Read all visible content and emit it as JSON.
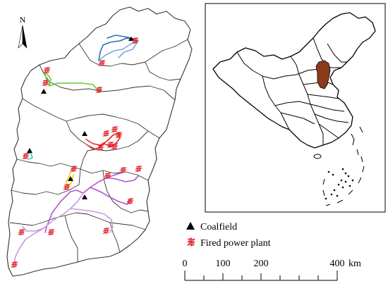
{
  "north_arrow": {
    "label": "N"
  },
  "legend": {
    "items": [
      {
        "symbol": "triangle",
        "label": "Coalfield",
        "color": "#000000"
      },
      {
        "symbol": "plant",
        "label": "Fired power plant",
        "color": "#e3212b"
      }
    ]
  },
  "scale_bar": {
    "ticks": [
      "0",
      "100",
      "200",
      "400"
    ],
    "unit": "km"
  },
  "inset": {
    "highlight_color": "#8b3a1a"
  },
  "route_colors": {
    "north": "#2a6fb5",
    "north_light": "#79a9d8",
    "upper": "#66cc33",
    "central": "#e8271f",
    "west": "#33cccc",
    "middle": "#f2d300",
    "south": "#b455d1",
    "south_light": "#c79be0"
  }
}
